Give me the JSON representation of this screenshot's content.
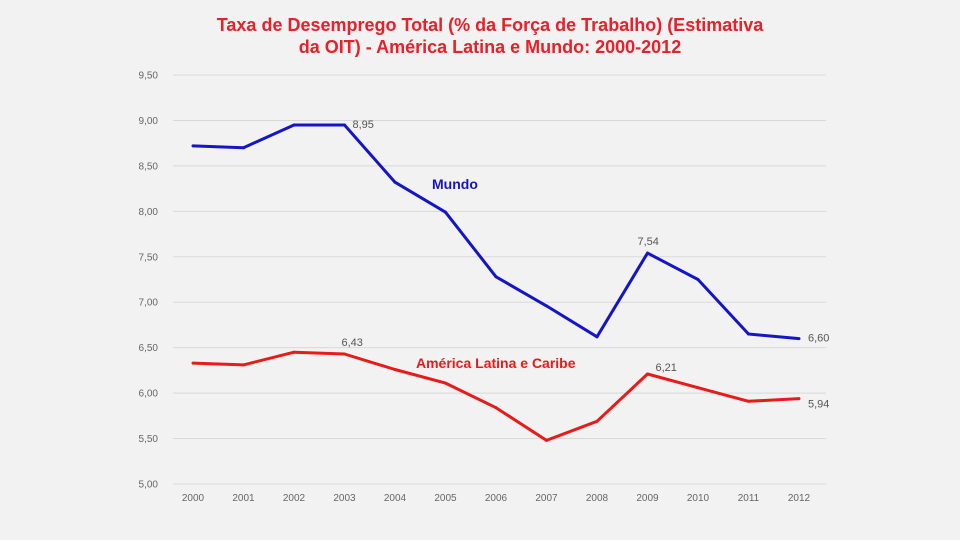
{
  "chart_data": {
    "type": "line",
    "title_line1": "Taxa de Desemprego Total (% da Força de Trabalho) (Estimativa",
    "title_line2": "da OIT) - América Latina e Mundo: 2000-2012",
    "xlabel": "",
    "ylabel": "",
    "x": [
      "2000",
      "2001",
      "2002",
      "2003",
      "2004",
      "2005",
      "2006",
      "2007",
      "2008",
      "2009",
      "2010",
      "2011",
      "2012"
    ],
    "ylim": [
      5.0,
      9.5
    ],
    "yticks": [
      "5,00",
      "5,50",
      "6,00",
      "6,50",
      "7,00",
      "7,50",
      "8,00",
      "8,50",
      "9,00",
      "9,50"
    ],
    "grid": true,
    "series": [
      {
        "name": "Mundo",
        "color": "#1515c8",
        "values": [
          8.72,
          8.7,
          8.95,
          8.95,
          8.32,
          7.99,
          7.28,
          6.96,
          6.62,
          7.54,
          7.25,
          6.65,
          6.6
        ],
        "labels": [
          {
            "index": 3,
            "text": "8,95"
          },
          {
            "index": 9,
            "text": "7,54"
          },
          {
            "index": 12,
            "text": "6,60"
          }
        ]
      },
      {
        "name": "América Latina e Caribe",
        "color": "#e81a1a",
        "values": [
          6.33,
          6.31,
          6.45,
          6.43,
          6.26,
          6.11,
          5.84,
          5.48,
          5.69,
          6.21,
          6.06,
          5.91,
          5.94
        ],
        "labels": [
          {
            "index": 3,
            "text": "6,43"
          },
          {
            "index": 9,
            "text": "6,21"
          },
          {
            "index": 12,
            "text": "5,94"
          }
        ]
      }
    ]
  }
}
